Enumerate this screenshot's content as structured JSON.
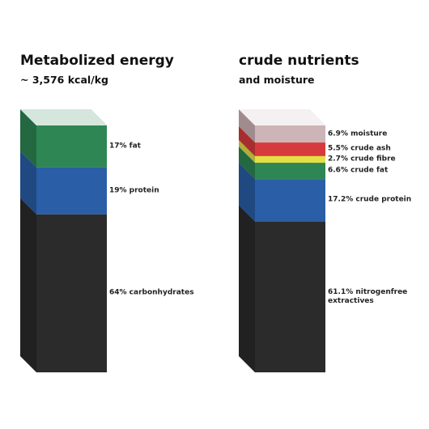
{
  "chart_data": [
    {
      "type": "stacked-column",
      "title": "Metabolized energy",
      "subtitle": "~ 3,576 kcal/kg",
      "ylim": [
        0,
        100
      ],
      "series": [
        {
          "color": "#2b2b2b",
          "values": [
            64
          ],
          "value_labels": [
            "64% carbonhydrates"
          ]
        },
        {
          "color": "#2a5ea6",
          "values": [
            19
          ],
          "value_labels": [
            "19% protein"
          ]
        },
        {
          "color": "#2e8654",
          "values": [
            17
          ],
          "value_labels": [
            "17% fat"
          ]
        }
      ]
    },
    {
      "type": "stacked-column",
      "title": "crude nutrients",
      "subtitle": "and moisture",
      "ylim": [
        0,
        100
      ],
      "series": [
        {
          "color": "#2b2b2b",
          "values": [
            61.1
          ],
          "value_labels": [
            "61.1% nitrogenfree extractives"
          ]
        },
        {
          "color": "#2a5ea6",
          "values": [
            17.2
          ],
          "value_labels": [
            "17.2% crude protein"
          ]
        },
        {
          "color": "#2e8654",
          "values": [
            6.6
          ],
          "value_labels": [
            "6.6% crude fat"
          ]
        },
        {
          "color": "#e3df45",
          "values": [
            2.7
          ],
          "value_labels": [
            "2.7% crude fibre"
          ]
        },
        {
          "color": "#d63a3d",
          "values": [
            5.5
          ],
          "value_labels": [
            "5.5% crude ash"
          ]
        },
        {
          "color": "#cdb4b7",
          "values": [
            6.9
          ],
          "value_labels": [
            "6.9% moisture"
          ]
        }
      ]
    }
  ]
}
